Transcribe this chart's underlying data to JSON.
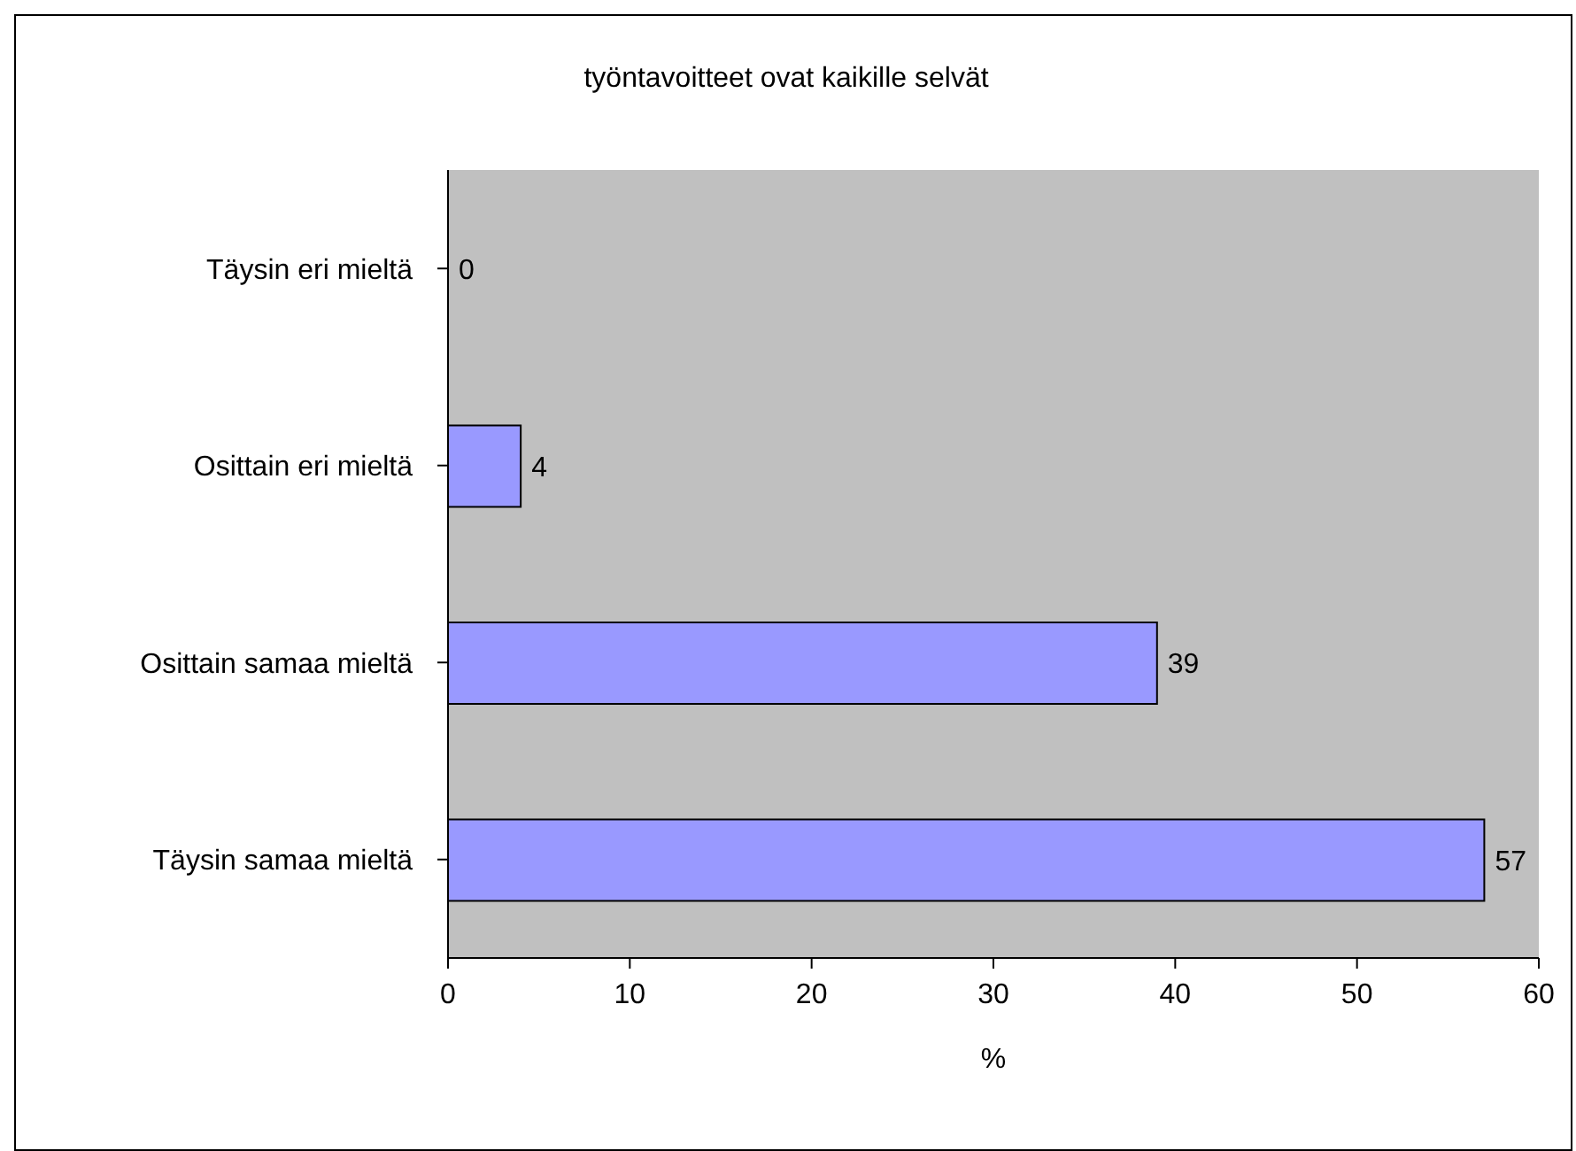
{
  "chart_data": {
    "type": "bar",
    "orientation": "horizontal",
    "title": "työntavoitteet ovat kaikille selvät",
    "xlabel": "%",
    "categories": [
      "Täysin eri mieltä",
      "Osittain eri mieltä",
      "Osittain samaa mieltä",
      "Täysin samaa mieltä"
    ],
    "values": [
      0,
      4,
      39,
      57
    ],
    "color": "#9999ff",
    "xlim": [
      0,
      60
    ],
    "xticks": [
      0,
      10,
      20,
      30,
      40,
      50,
      60
    ],
    "data_labels": true,
    "grid": false
  }
}
